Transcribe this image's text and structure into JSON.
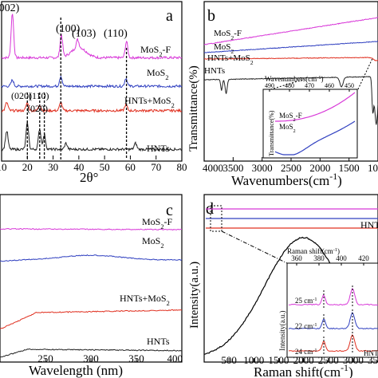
{
  "chart_data": [
    {
      "panel": "a",
      "type": "line",
      "xlabel": "2θ°",
      "ylabel": "",
      "xlim": [
        10,
        80
      ],
      "xticks": [
        "10",
        "20",
        "30",
        "40",
        "50",
        "60",
        "70",
        "80"
      ],
      "series": [
        {
          "name": "MoS2-F",
          "color": "#d838d8",
          "offset": 5.0,
          "peaks": [
            [
              14.2,
              2.2
            ],
            [
              33.2,
              1.1
            ],
            [
              39.5,
              0.4
            ],
            [
              58.5,
              0.8
            ]
          ]
        },
        {
          "name": "MoS2",
          "color": "#3040c0",
          "offset": 3.6,
          "peaks": [
            [
              14.2,
              0.3
            ],
            [
              33.0,
              0.5
            ],
            [
              58.3,
              0.4
            ]
          ]
        },
        {
          "name": "HNTs+MoS2",
          "color": "#e03020",
          "offset": 2.4,
          "peaks": [
            [
              12.0,
              0.4
            ],
            [
              20.0,
              0.4
            ],
            [
              24.8,
              0.3
            ],
            [
              33.0,
              0.4
            ],
            [
              58.3,
              0.3
            ]
          ]
        },
        {
          "name": "HNTs",
          "color": "#222222",
          "offset": 0.5,
          "peaks": [
            [
              12.0,
              0.9
            ],
            [
              20.0,
              1.3
            ],
            [
              24.8,
              1.0
            ],
            [
              26.6,
              0.7
            ],
            [
              35.0,
              0.3
            ],
            [
              62.0,
              0.3
            ]
          ]
        }
      ],
      "peak_labels": [
        {
          "text": "(002)",
          "x": 11.5
        },
        {
          "text": "(100)",
          "x": 33.0
        },
        {
          "text": "(103)",
          "x": 40.0
        },
        {
          "text": "(110)",
          "x": 58.5
        },
        {
          "text": "(020)",
          "x": 19.5
        },
        {
          "text": "(110)",
          "x": 24.5
        },
        {
          "text": "(020)",
          "x": 27.0
        }
      ],
      "series_labels": [
        "MoS2-F",
        "MoS2",
        "HNTs+MoS2",
        "HNTs"
      ]
    },
    {
      "panel": "b",
      "type": "line",
      "xlabel": "Wavenumbers(cm-1)",
      "ylabel": "Transmittance(%)",
      "xlim": [
        4000,
        1000
      ],
      "xticks": [
        "4000",
        "3500",
        "3000",
        "2500",
        "2000",
        "1500",
        "1000"
      ],
      "series_labels": [
        "MoS2-F",
        "MoS2",
        "HNTs+MoS2",
        "HNTs"
      ],
      "inset": {
        "xlabel": "Wavenumbers(cm-1)",
        "ylabel": "Transmittance(%)",
        "xticks": [
          "490",
          "480",
          "470",
          "460",
          "450"
        ],
        "series_labels": [
          "MoS2-F",
          "MoS2"
        ]
      }
    },
    {
      "panel": "c",
      "type": "line",
      "xlabel": "Wavelength (nm)",
      "ylabel": "",
      "xlim": [
        200,
        400
      ],
      "xticks": [
        "250",
        "300",
        "350",
        "400"
      ],
      "series_labels": [
        "MoS2-F",
        "MoS2",
        "HNTs+MoS2",
        "HNTs"
      ]
    },
    {
      "panel": "d",
      "type": "line",
      "xlabel": "Raman shift(cm-1)",
      "ylabel": "Intensity(a.u.)",
      "xlim": [
        0,
        3500
      ],
      "xticks": [
        "500",
        "1000",
        "1500",
        "2000",
        "2500",
        "3000",
        "3500"
      ],
      "series_labels": [
        "HNT"
      ],
      "inset": {
        "xlabel": "Raman shift(cm-1)",
        "ylabel": "Intensity(a.u.)",
        "xticks": [
          "360",
          "380",
          "400",
          "420"
        ],
        "annotations": [
          "25 cm-1",
          "22 cm-1",
          "24 cm-1"
        ],
        "series_labels": [
          "HNT"
        ]
      }
    }
  ]
}
